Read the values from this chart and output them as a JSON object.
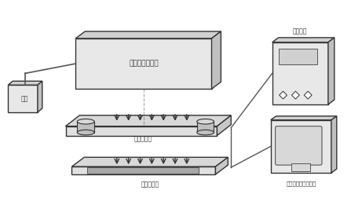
{
  "bg_color": "#f0f0f0",
  "title": "",
  "labels": {
    "guang_yuan": "光源",
    "xianxing": "线性光源转换器",
    "weiliu": "微流控芯片",
    "xianxing_sensor": "线性传感器",
    "gaoya": "高压电源",
    "shuju": "数据处理及控制单元"
  },
  "arrow_color": "#333333",
  "box_color": "#dddddd",
  "line_color": "#333333"
}
